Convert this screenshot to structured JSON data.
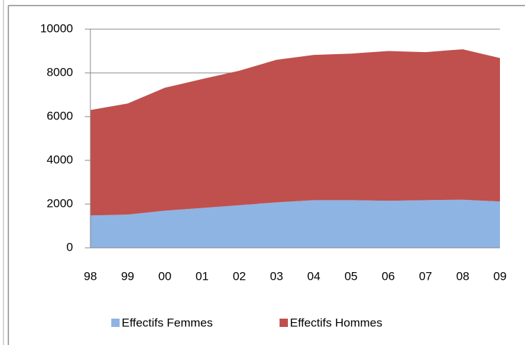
{
  "chart_data": {
    "type": "area",
    "stacked": true,
    "categories": [
      "98",
      "99",
      "00",
      "01",
      "02",
      "03",
      "04",
      "05",
      "06",
      "07",
      "08",
      "09"
    ],
    "series": [
      {
        "name": "Effectifs Femmes",
        "color": "#8eb4e3",
        "values": [
          1480,
          1520,
          1700,
          1820,
          1950,
          2080,
          2180,
          2180,
          2150,
          2180,
          2200,
          2120
        ]
      },
      {
        "name": "Effectifs Hommes",
        "color": "#c0504d",
        "values": [
          4820,
          5080,
          5620,
          5900,
          6150,
          6520,
          6640,
          6700,
          6850,
          6770,
          6880,
          6560
        ]
      }
    ],
    "ylim": [
      0,
      10000
    ],
    "yticks": [
      0,
      2000,
      4000,
      6000,
      8000,
      10000
    ],
    "grid": true,
    "legend": "bottom"
  }
}
